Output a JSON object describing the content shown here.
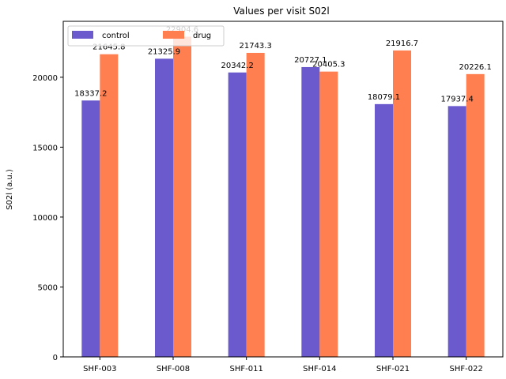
{
  "chart_data": {
    "type": "bar",
    "title": "Values per visit S02l",
    "xlabel": "",
    "ylabel": "S02l (a.u.)",
    "categories": [
      "SHF-003",
      "SHF-008",
      "SHF-011",
      "SHF-014",
      "SHF-021",
      "SHF-022"
    ],
    "series": [
      {
        "name": "control",
        "color": "#6a5acd",
        "values": [
          18337.2,
          21325.9,
          20342.2,
          20727.1,
          18079.1,
          17937.4
        ]
      },
      {
        "name": "drug",
        "color": "#ff7f50",
        "values": [
          21645.8,
          22904.6,
          21743.3,
          20405.3,
          21916.7,
          20226.1
        ]
      }
    ],
    "data_labels": [
      [
        "18337.2",
        "21325.9",
        "20342.2",
        "20727.1",
        "18079.1",
        "17937.4"
      ],
      [
        "21645.8",
        "22904.6",
        "21743.3",
        "20405.3",
        "21916.7",
        "20226.1"
      ]
    ],
    "ylim": [
      0,
      24000
    ],
    "yticks": [
      0,
      5000,
      10000,
      15000,
      20000
    ],
    "ytick_labels": [
      "0",
      "5000",
      "10000",
      "15000",
      "20000"
    ],
    "legend_position": "top-left",
    "grid": false
  }
}
